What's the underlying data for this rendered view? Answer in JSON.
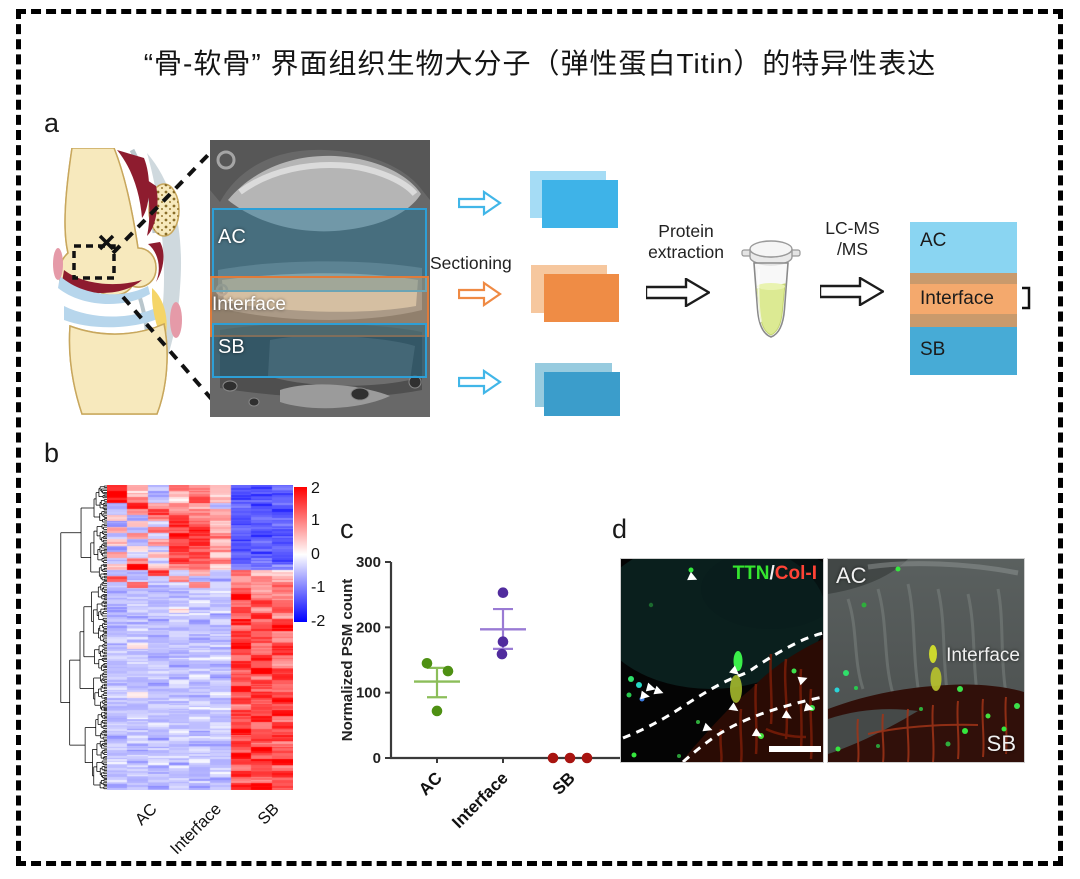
{
  "title": "“骨-软骨” 界面组织生物大分子（弹性蛋白Titin）的特异性表达",
  "panel_labels": {
    "a": "a",
    "b": "b",
    "c": "c",
    "d": "d"
  },
  "panel_a": {
    "sem_overlay_labels": {
      "ac": "AC",
      "interface": "Interface",
      "sb": "SB"
    },
    "sectioning_label": "Sectioning",
    "protein_extraction": [
      "Protein",
      "extraction"
    ],
    "lcms": [
      "LC-MS",
      "/MS"
    ],
    "final_stack_labels": {
      "ac": "AC",
      "interface": "Interface",
      "sb": "SB"
    },
    "colors": {
      "slice_ac_front": "#3EB3E8",
      "slice_ac_back": "#A5DCF5",
      "slice_interface_front": "#EF8C45",
      "slice_interface_back": "#F6C79E",
      "slice_sb_front": "#3B9DCB",
      "slice_sb_back": "#97CBDF",
      "arrow_cyan": "#41B6E8",
      "arrow_orange": "#EF8A44",
      "final_ac": "#8AD5F2",
      "final_strip": "#C99A6C",
      "final_interface": "#F4A96D",
      "final_sb": "#47ABD6",
      "sem_box_blue": "#2D9FD6",
      "sem_box_orange": "#E07B3A"
    }
  },
  "chart_data": [
    {
      "type": "heatmap",
      "group_labels": [
        "AC",
        "Interface",
        "SB"
      ],
      "columns_per_group": 3,
      "colorbar_ticks": [
        "2",
        "1",
        "0",
        "-1",
        "-2"
      ],
      "colorscale": {
        "min": -2,
        "max": 2,
        "min_color": "#0000ff",
        "mid_color": "#ffffff",
        "max_color": "#ff0000"
      },
      "legend_position": "right",
      "values": [
        [
          1.6,
          0.7,
          -0.6,
          1.1,
          0.8,
          0.5,
          -1.2,
          -1.3,
          -1.2
        ],
        [
          2.0,
          0.4,
          -0.8,
          0.6,
          1.2,
          0.2,
          -1.3,
          -1.4,
          -1.3
        ],
        [
          1.9,
          1.1,
          -0.5,
          0.3,
          1.5,
          0.7,
          -1.4,
          -1.3,
          -1.2
        ],
        [
          -0.7,
          1.8,
          0.8,
          1.0,
          0.4,
          -0.5,
          -1.3,
          -1.4,
          -1.3
        ],
        [
          -0.5,
          0.8,
          1.6,
          0.7,
          1.1,
          0.6,
          -1.2,
          -1.3,
          -1.4
        ],
        [
          0.5,
          -0.7,
          0.9,
          1.5,
          1.0,
          0.8,
          -1.3,
          -1.2,
          -1.3
        ],
        [
          -0.9,
          0.5,
          -0.4,
          1.8,
          1.3,
          0.3,
          -1.4,
          -1.4,
          -1.2
        ],
        [
          0.6,
          -0.5,
          1.1,
          1.4,
          1.7,
          0.7,
          -1.2,
          -1.3,
          -1.3
        ],
        [
          -0.6,
          0.7,
          -0.4,
          1.9,
          1.5,
          1.0,
          -1.3,
          -1.4,
          -1.4
        ],
        [
          0.4,
          -0.6,
          0.8,
          1.3,
          1.8,
          0.5,
          -1.4,
          -1.2,
          -1.3
        ],
        [
          -0.7,
          0.3,
          -0.6,
          1.7,
          1.1,
          0.9,
          -1.3,
          -1.3,
          -1.2
        ],
        [
          0.7,
          -0.4,
          0.6,
          1.2,
          1.6,
          0.4,
          -1.2,
          -1.4,
          -1.3
        ],
        [
          -0.4,
          0.8,
          -0.3,
          1.6,
          1.4,
          1.1,
          -1.3,
          -1.2,
          -1.4
        ],
        [
          0.5,
          2.0,
          0.4,
          0.8,
          1.0,
          0.3,
          -0.9,
          -1.1,
          -1.0
        ],
        [
          -0.6,
          -0.5,
          1.4,
          -0.4,
          0.7,
          -0.5,
          1.1,
          0.5,
          0.3
        ],
        [
          1.2,
          -0.6,
          -0.4,
          0.8,
          -0.5,
          -0.6,
          0.7,
          1.0,
          0.6
        ],
        [
          -0.5,
          1.3,
          -0.6,
          -0.4,
          1.0,
          -0.3,
          0.9,
          0.8,
          1.1
        ],
        [
          -0.6,
          -0.4,
          -0.5,
          -0.6,
          -0.5,
          -0.4,
          1.4,
          0.8,
          1.0
        ],
        [
          -0.5,
          -0.6,
          -0.4,
          -0.5,
          -0.6,
          -0.5,
          2.0,
          1.1,
          0.7
        ],
        [
          -0.4,
          -0.5,
          -0.6,
          -0.4,
          -0.3,
          -0.6,
          1.0,
          1.5,
          1.2
        ],
        [
          -0.6,
          -0.4,
          -0.5,
          0.2,
          -0.6,
          -0.4,
          1.6,
          0.9,
          1.4
        ],
        [
          -0.5,
          -0.6,
          -0.3,
          -0.5,
          -0.4,
          -0.6,
          1.2,
          1.8,
          0.8
        ],
        [
          -0.4,
          -0.5,
          -0.6,
          -0.4,
          -0.6,
          -0.3,
          1.9,
          1.0,
          1.6
        ],
        [
          -0.6,
          -0.3,
          -0.4,
          -0.6,
          -0.5,
          -0.5,
          1.1,
          1.4,
          2.0
        ],
        [
          -0.5,
          -0.6,
          -0.5,
          -0.3,
          -0.4,
          -0.6,
          1.7,
          1.2,
          0.9
        ],
        [
          -0.3,
          -0.4,
          -0.6,
          -0.5,
          -0.6,
          -0.4,
          1.3,
          1.6,
          1.1
        ],
        [
          -0.6,
          0.3,
          -0.4,
          -0.6,
          -0.3,
          -0.5,
          2.0,
          0.9,
          1.5
        ],
        [
          -0.5,
          -0.6,
          -0.5,
          -0.4,
          -0.5,
          -0.6,
          1.4,
          1.1,
          1.8
        ],
        [
          -0.4,
          -0.3,
          -0.6,
          -0.5,
          -0.4,
          -0.3,
          1.0,
          1.7,
          1.2
        ],
        [
          -0.6,
          -0.5,
          -0.4,
          -0.6,
          -0.6,
          -0.5,
          1.8,
          1.3,
          0.8
        ],
        [
          -0.5,
          -0.4,
          -0.3,
          -0.4,
          -0.5,
          -0.4,
          1.2,
          2.0,
          1.4
        ],
        [
          -0.4,
          -0.6,
          -0.5,
          -0.5,
          -0.3,
          -0.6,
          1.5,
          1.0,
          1.7
        ],
        [
          -0.6,
          -0.5,
          -0.6,
          -0.3,
          -0.6,
          -0.4,
          1.1,
          1.6,
          1.3
        ],
        [
          -0.3,
          -0.4,
          -0.5,
          -0.6,
          -0.4,
          -0.5,
          1.9,
          1.2,
          1.0
        ],
        [
          -0.5,
          0.2,
          -0.4,
          -0.5,
          -0.6,
          -0.3,
          1.3,
          1.8,
          1.5
        ],
        [
          -0.6,
          -0.5,
          -0.6,
          -0.4,
          -0.5,
          -0.6,
          1.6,
          1.1,
          1.9
        ],
        [
          -0.4,
          -0.6,
          -0.3,
          -0.6,
          -0.3,
          -0.4,
          1.0,
          1.5,
          1.2
        ],
        [
          -0.5,
          -0.4,
          -0.5,
          -0.4,
          -0.6,
          -0.5,
          1.7,
          1.3,
          2.0
        ],
        [
          -0.6,
          -0.3,
          -0.6,
          -0.5,
          -0.4,
          -0.6,
          1.2,
          1.9,
          1.1
        ],
        [
          -0.4,
          -0.5,
          -0.4,
          -0.6,
          -0.5,
          -0.3,
          1.5,
          1.0,
          1.6
        ],
        [
          -0.5,
          -0.6,
          -0.5,
          -0.3,
          -0.6,
          -0.5,
          2.0,
          1.4,
          1.3
        ],
        [
          -0.6,
          -0.4,
          -0.6,
          -0.5,
          -0.4,
          -0.4,
          1.1,
          1.7,
          1.8
        ],
        [
          -0.3,
          -0.5,
          -0.4,
          -0.6,
          -0.5,
          -0.6,
          1.6,
          1.2,
          1.0
        ],
        [
          -0.5,
          -0.6,
          -0.6,
          -0.4,
          -0.3,
          -0.5,
          1.3,
          1.8,
          1.5
        ],
        [
          -0.6,
          -0.4,
          -0.5,
          -0.5,
          -0.6,
          -0.4,
          1.9,
          1.1,
          1.2
        ],
        [
          -0.4,
          -0.5,
          -0.3,
          -0.6,
          -0.4,
          -0.6,
          1.4,
          1.6,
          2.0
        ],
        [
          -0.5,
          -0.3,
          -0.6,
          -0.4,
          -0.5,
          -0.5,
          1.0,
          1.3,
          1.1
        ],
        [
          -0.6,
          -0.5,
          -0.4,
          -0.5,
          -0.6,
          -0.3,
          1.8,
          1.5,
          1.7
        ],
        [
          -0.4,
          -0.6,
          -0.5,
          -0.6,
          -0.5,
          -0.6,
          1.2,
          1.0,
          1.4
        ],
        [
          -0.5,
          -0.4,
          -0.6,
          -0.4,
          -0.6,
          -0.4,
          1.6,
          1.9,
          1.3
        ]
      ]
    },
    {
      "type": "scatter",
      "ylabel": "Normalized PSM count",
      "ylim": [
        0,
        300
      ],
      "yticks": [
        0,
        100,
        200,
        300
      ],
      "categories": [
        "AC",
        "Interface",
        "SB"
      ],
      "series": [
        {
          "name": "AC",
          "color": "#4E9013",
          "line_color": "#8CBE5A",
          "points": [
            145,
            133,
            72
          ],
          "x_jitter": [
            -10,
            11,
            0
          ],
          "mean": 117,
          "err_low": 93,
          "err_high": 138
        },
        {
          "name": "Interface",
          "color": "#512C9E",
          "line_color": "#9A7BD4",
          "points": [
            253,
            178,
            159
          ],
          "x_jitter": [
            0,
            0,
            -1
          ],
          "mean": 197,
          "err_low": 167,
          "err_high": 228
        },
        {
          "name": "SB",
          "color": "#A81410",
          "line_color": "#A81410",
          "points": [
            0,
            0,
            0
          ],
          "x_jitter": [
            -17,
            0,
            17
          ],
          "mean": 0,
          "err_low": 0,
          "err_high": 0
        }
      ]
    }
  ],
  "panel_d": {
    "legend": {
      "ttn": "TTN",
      "slash": "/",
      "col1": "Col-I",
      "ttn_color": "#35E52F",
      "col1_color": "#FF4336"
    },
    "right_labels": {
      "ac": "AC",
      "interface": "Interface",
      "sb": "SB"
    }
  }
}
